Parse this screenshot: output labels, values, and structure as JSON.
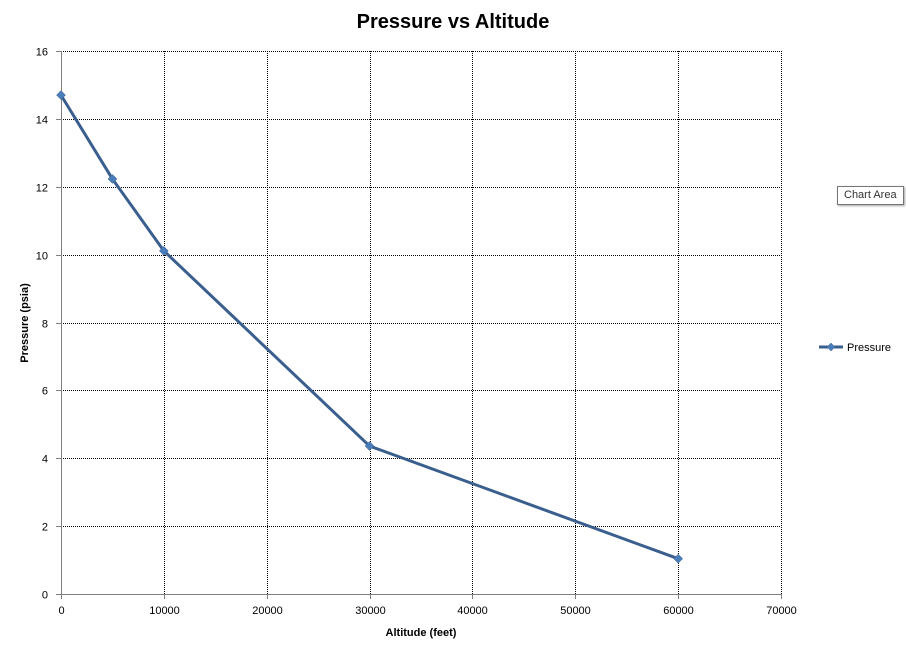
{
  "tooltip": {
    "text": "Chart Area"
  },
  "colors": {
    "series_line": "#3a5f8f",
    "series_marker": "#4a7ebb",
    "grid": "#000000",
    "axis": "#7f7f7f"
  },
  "chart_data": {
    "type": "line",
    "title": "Pressure vs Altitude",
    "xlabel": "Altitude (feet)",
    "ylabel": "Pressure (psia)",
    "xlim": [
      0,
      70000
    ],
    "ylim": [
      0,
      16
    ],
    "xticks": [
      0,
      10000,
      20000,
      30000,
      40000,
      50000,
      60000,
      70000
    ],
    "yticks": [
      0,
      2,
      4,
      6,
      8,
      10,
      12,
      14,
      16
    ],
    "grid": true,
    "legend_position": "right",
    "series": [
      {
        "name": "Pressure",
        "marker": "diamond",
        "x": [
          0,
          5000,
          10000,
          30000,
          60000
        ],
        "y": [
          14.7,
          12.23,
          10.11,
          4.36,
          1.04
        ]
      }
    ]
  }
}
